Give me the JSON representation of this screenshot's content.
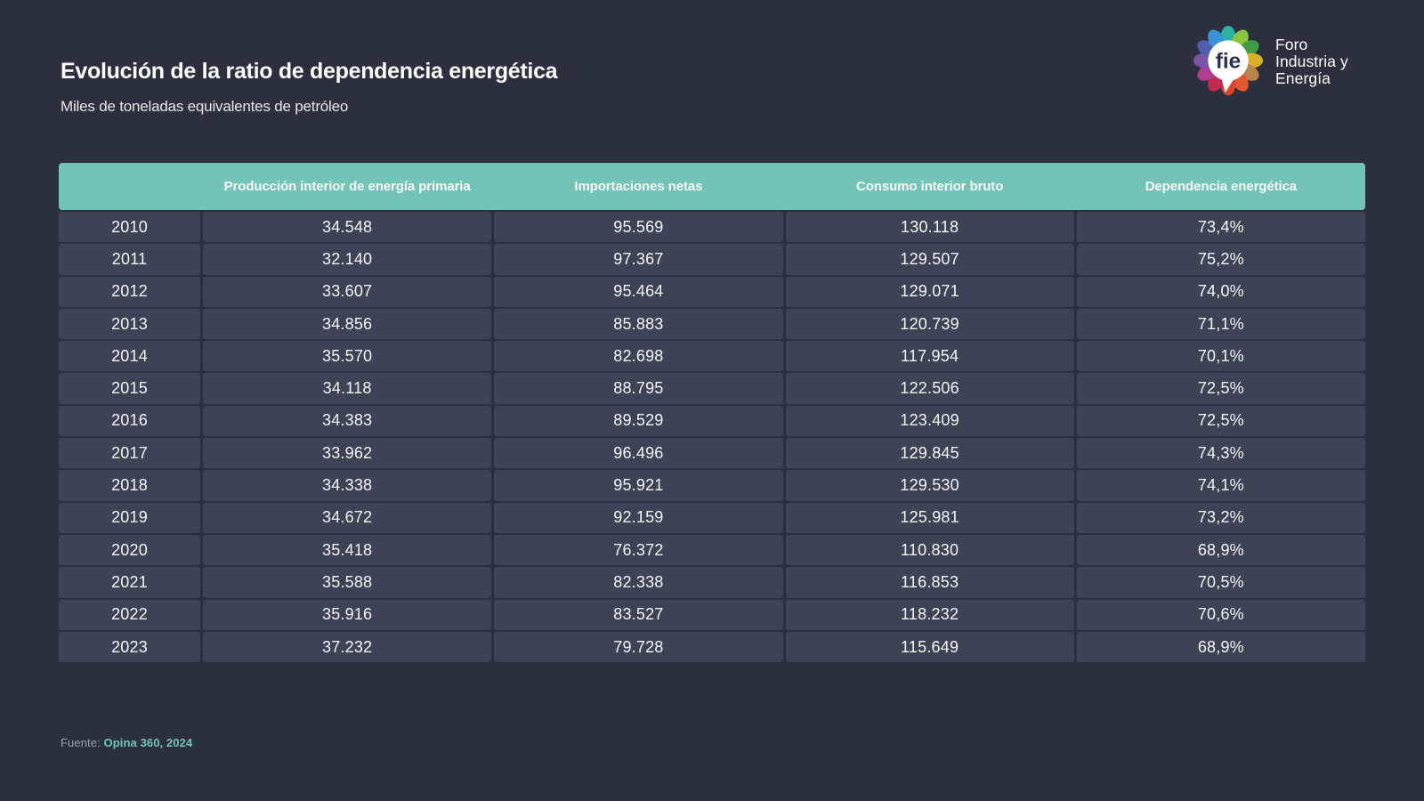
{
  "chart_data": {
    "type": "table",
    "title": "Evolución de la ratio de dependencia energética",
    "subtitle": "Miles de toneladas equivalentes de petróleo",
    "columns": [
      "",
      "Producción interior de energía primaria",
      "Importaciones netas",
      "Consumo interior bruto",
      "Dependencia energética"
    ],
    "rows": [
      [
        "2010",
        "34.548",
        "95.569",
        "130.118",
        "73,4%"
      ],
      [
        "2011",
        "32.140",
        "97.367",
        "129.507",
        "75,2%"
      ],
      [
        "2012",
        "33.607",
        "95.464",
        "129.071",
        "74,0%"
      ],
      [
        "2013",
        "34.856",
        "85.883",
        "120.739",
        "71,1%"
      ],
      [
        "2014",
        "35.570",
        "82.698",
        "117.954",
        "70,1%"
      ],
      [
        "2015",
        "34.118",
        "88.795",
        "122.506",
        "72,5%"
      ],
      [
        "2016",
        "34.383",
        "89.529",
        "123.409",
        "72,5%"
      ],
      [
        "2017",
        "33.962",
        "96.496",
        "129.845",
        "74,3%"
      ],
      [
        "2018",
        "34.338",
        "95.921",
        "129.530",
        "74,1%"
      ],
      [
        "2019",
        "34.672",
        "92.159",
        "125.981",
        "73,2%"
      ],
      [
        "2020",
        "35.418",
        "76.372",
        "110.830",
        "68,9%"
      ],
      [
        "2021",
        "35.588",
        "82.338",
        "116.853",
        "70,5%"
      ],
      [
        "2022",
        "35.916",
        "83.527",
        "118.232",
        "70,6%"
      ],
      [
        "2023",
        "37.232",
        "79.728",
        "115.649",
        "68,9%"
      ]
    ]
  },
  "source": {
    "label": "Fuente:",
    "value": "Opina 360, 2024"
  },
  "logo": {
    "monogram": "fie",
    "name_lines": [
      "Foro",
      "Industria y",
      "Energía"
    ],
    "petal_colors": [
      "#2db3a4",
      "#8cc63f",
      "#3f9d46",
      "#d9b02c",
      "#b9824f",
      "#e3572e",
      "#d9432e",
      "#c22a50",
      "#b13d92",
      "#7b52a5",
      "#4f5fae",
      "#3a93d6"
    ]
  },
  "colors": {
    "background": "#2c2f3d",
    "cell_background": "#3e4255",
    "header_teal": "#72c4b8",
    "text": "#f5f6f8",
    "monogram_navy": "#2c3150",
    "source_label": "#98a0ad",
    "source_accent": "#6fc4b6"
  }
}
